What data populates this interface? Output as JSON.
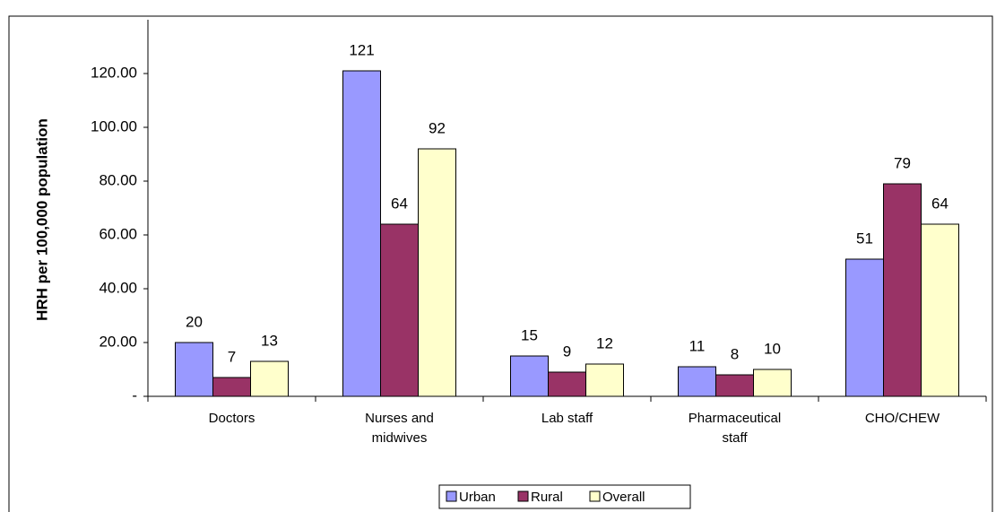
{
  "chart_data": {
    "type": "bar",
    "y_label": "HRH per 100,000 population",
    "categories": [
      "Doctors",
      "Nurses and midwives",
      "Lab staff",
      "Pharmaceutical staff",
      "CHO/CHEW"
    ],
    "series": [
      {
        "name": "Urban",
        "color": "#9999ff",
        "values": [
          20,
          121,
          15,
          11,
          51
        ]
      },
      {
        "name": "Rural",
        "color": "#993366",
        "values": [
          7,
          64,
          9,
          8,
          79
        ]
      },
      {
        "name": "Overall",
        "color": "#ffffcc",
        "values": [
          13,
          92,
          12,
          10,
          64
        ]
      }
    ],
    "ylim": [
      0,
      140
    ],
    "yticks": [
      {
        "value": 0,
        "label": "-"
      },
      {
        "value": 20,
        "label": "20.00"
      },
      {
        "value": 40,
        "label": "40.00"
      },
      {
        "value": 60,
        "label": "60.00"
      },
      {
        "value": 80,
        "label": "80.00"
      },
      {
        "value": 100,
        "label": "100.00"
      },
      {
        "value": 120,
        "label": "120.00"
      }
    ],
    "legend": "bottom"
  }
}
